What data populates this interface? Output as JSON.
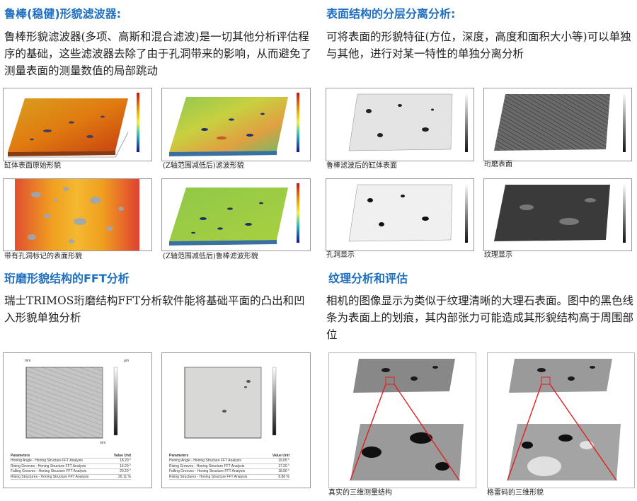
{
  "left": {
    "section1": {
      "title": "鲁棒(稳健)形貌滤波器:",
      "body": "鲁棒形貌滤波器(多项、高斯和混合滤波)是一切其他分析评估程序的基础，这些滤波器去除了由于孔洞带来的影响，从而避免了测量表面的测量数值的局部跳动",
      "captions": [
        "缸体表面原始形貌",
        "(Z轴范围减低后)滤波形貌",
        "带有孔洞标记的表面形貌",
        "(Z轴范围减低后)鲁棒滤波形貌"
      ]
    },
    "section2": {
      "title": "珩磨形貌结构的FFT分析",
      "body": "瑞士TRIMOS珩磨结构FFT分析软件能将基础平面的凸出和凹入形貌单独分析",
      "tables": [
        {
          "header": [
            "Parameters",
            "Value Unit"
          ],
          "rows": [
            [
              "Honing Angle - Honing Structure FFT Analysis",
              "18.20 °"
            ],
            [
              "Rising Grooves - Honing Structure FFT Analysis",
              "16.20 °"
            ],
            [
              "Falling Grooves - Honing Structure FFT Analysis",
              "20.20 °"
            ],
            [
              "Rising Structures - Honing Structure FFT Analysis",
              "26.11 %"
            ]
          ]
        },
        {
          "header": [
            "Parameters",
            "Value Unit"
          ],
          "rows": [
            [
              "Honing Angle - Honing Structure FFT Analysis",
              "19.05 °"
            ],
            [
              "Rising Grooves - Honing Structure FFT Analysis",
              "17.20 °"
            ],
            [
              "Falling Grooves - Honing Structure FFT Analysis",
              "18.90 °"
            ],
            [
              "Rising Structures - Honing Structure FFT Analysis",
              "8.86 %"
            ]
          ]
        }
      ],
      "axis_unit_x": "mm",
      "axis_unit_y": "mm",
      "axis_unit_z": "µm"
    }
  },
  "right": {
    "section1": {
      "title": "表面结构的分层分离分析:",
      "body": "可将表面的形貌特征(方位，深度，高度和面积大小等)可以单独与其他，进行对某一特性的单独分离分析",
      "captions": [
        "鲁棒滤波后的缸体表面",
        "珩磨表面",
        "孔洞显示",
        "纹理显示"
      ]
    },
    "section2": {
      "title": "纹理分析和评估",
      "body": "相机的图像显示为类似于纹理清晰的大理石表面。图中的黑色线条为表面上的划痕，其内部张力可能造成其形貌结构高于周围部位",
      "captions": [
        "真实的三维测量结构",
        "格雷码的三维形貌"
      ]
    }
  },
  "colors": {
    "heading": "#1f6fc0",
    "zoom_lines": "#e02020"
  }
}
